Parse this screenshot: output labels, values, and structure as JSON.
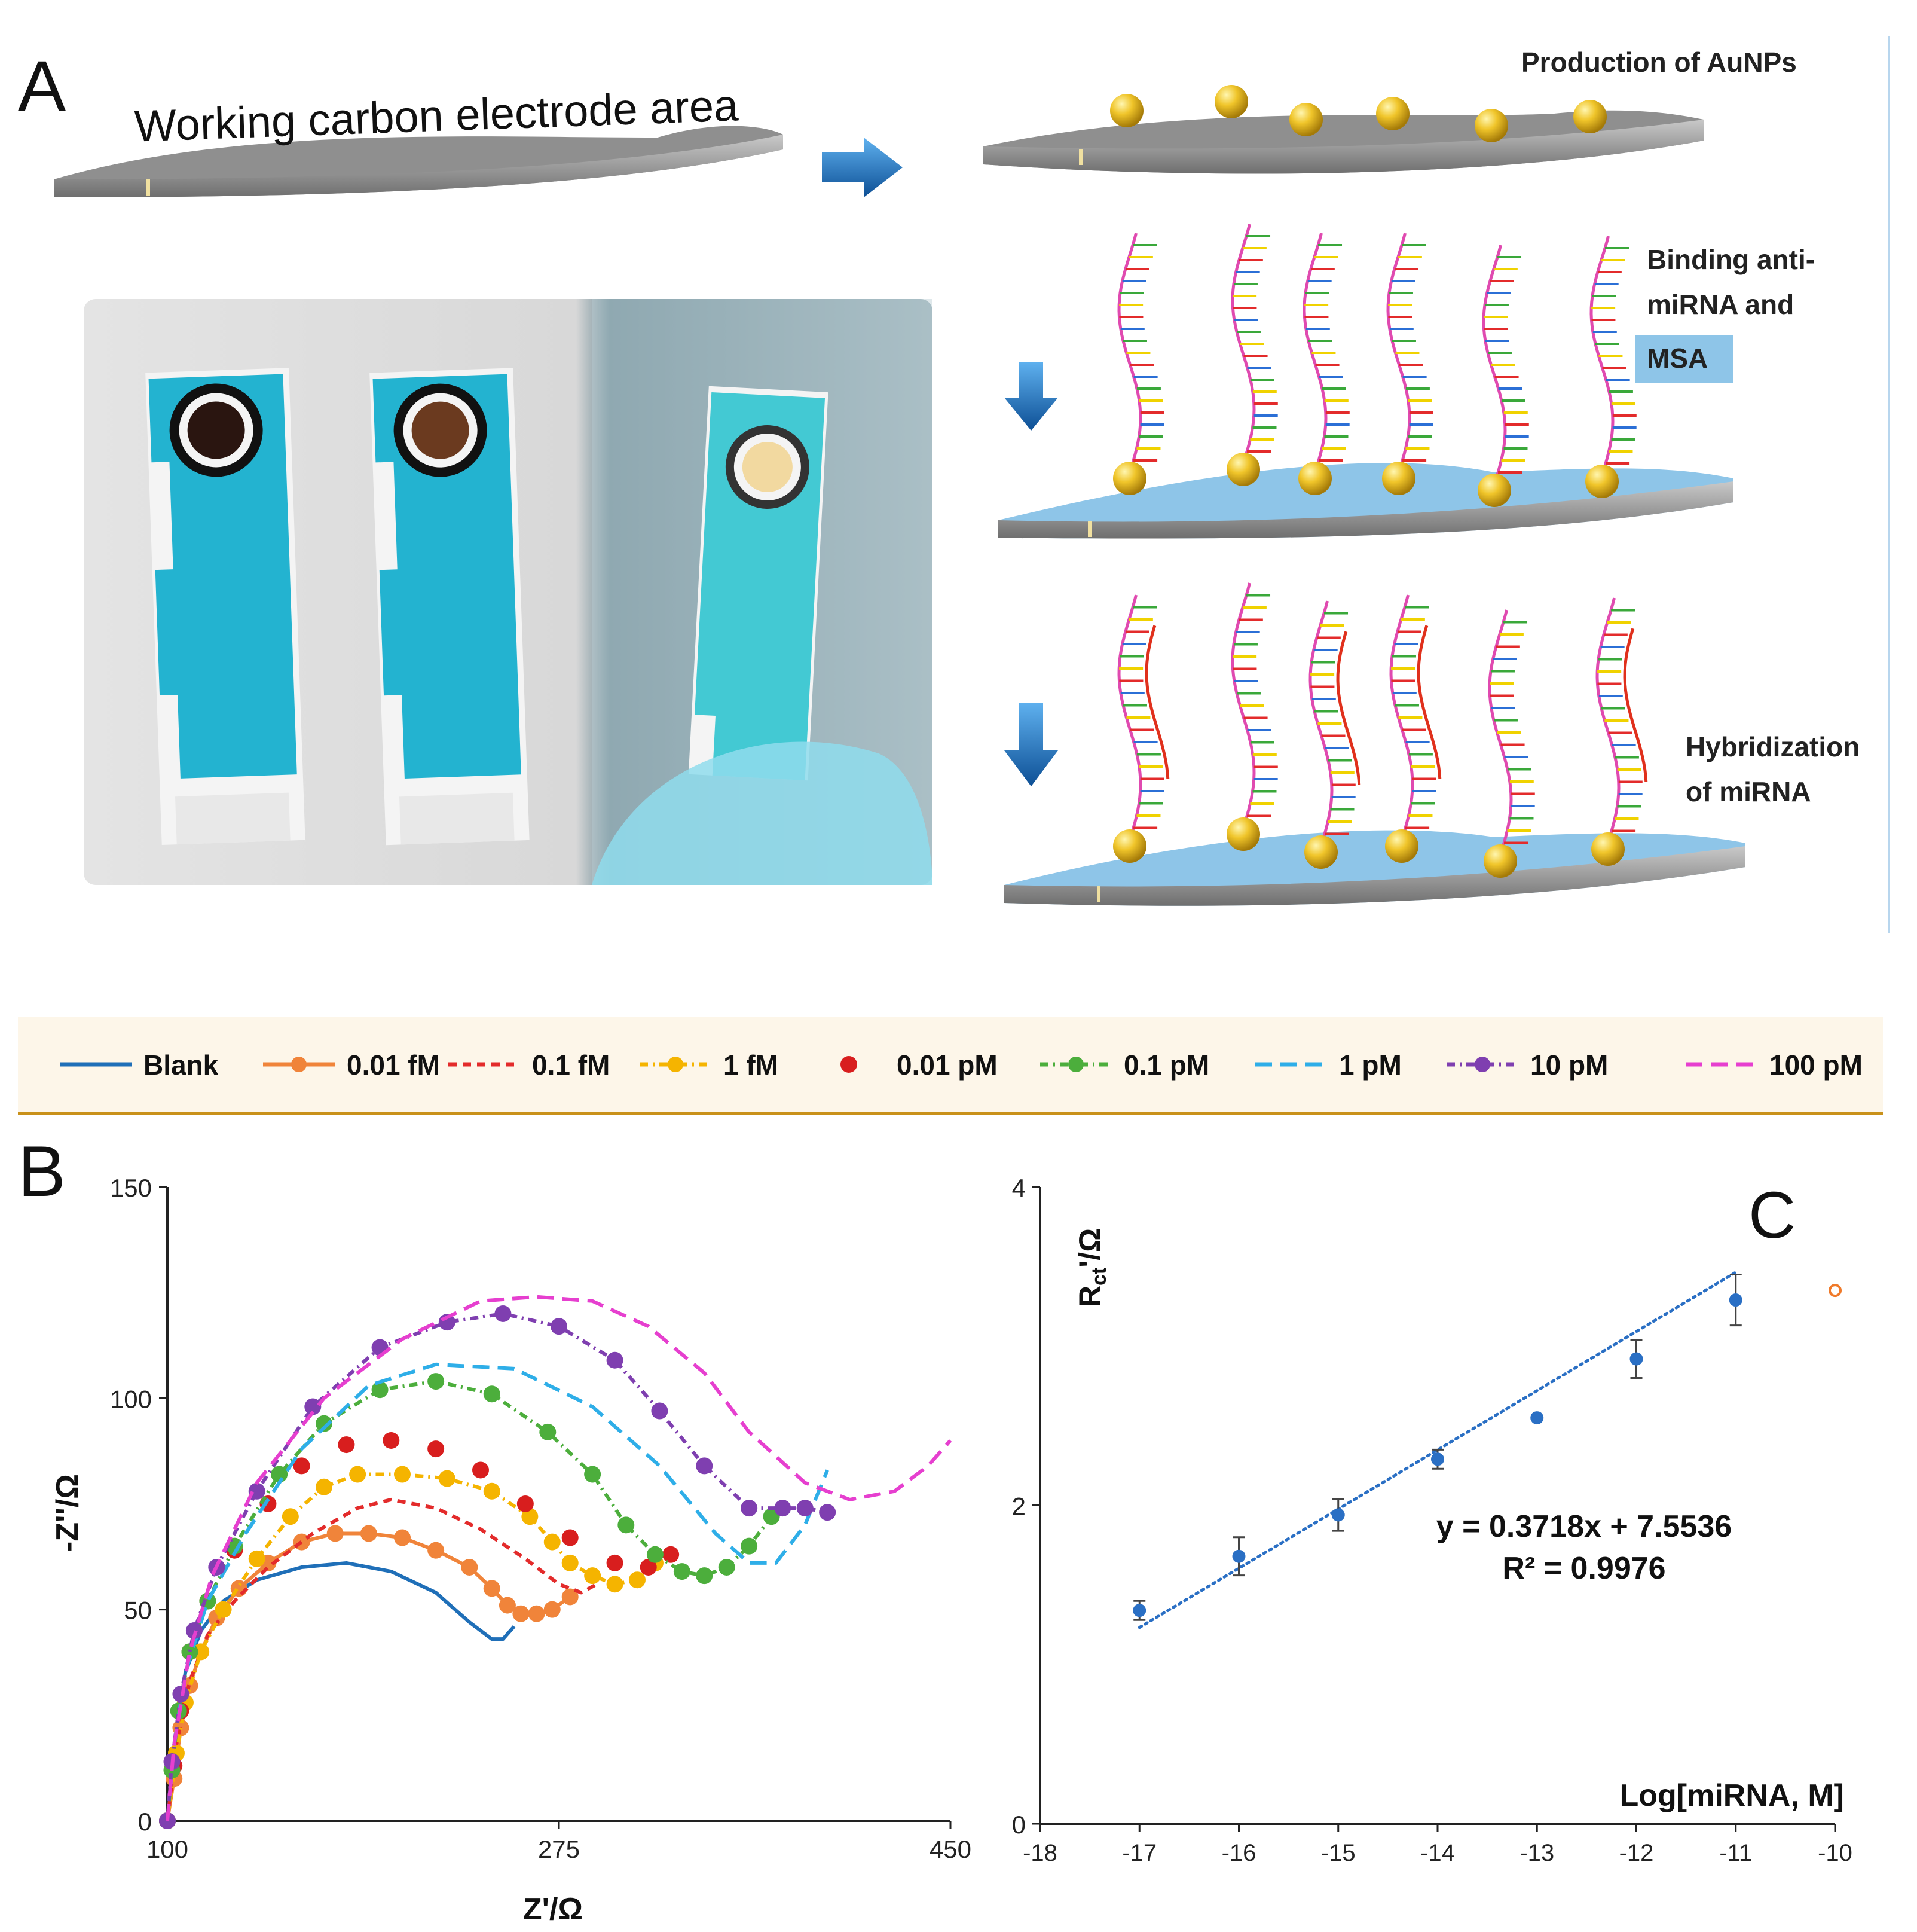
{
  "panel_a": {
    "letter": "A",
    "electrode_title": "Working carbon electrode area",
    "step1_label": "Production of AuNPs",
    "step2_label_line1": "Binding anti-",
    "step2_label_line2": "miRNA and",
    "step2_label_line3": "MSA",
    "step3_label_line1": "Hybridization",
    "step3_label_line2": "of miRNA",
    "colors": {
      "electrode_gray": "#9a9a9a",
      "electrode_blue": "#8ec5e8",
      "gold": "#e8b820",
      "arrow_blue": "#1f6fb8",
      "strip_cyan": "#23b3d0"
    }
  },
  "legend": {
    "items": [
      {
        "label": "Blank",
        "color": "#1f6fb8",
        "style": "solid"
      },
      {
        "label": "0.01 fM",
        "color": "#f0843a",
        "style": "solid-dot"
      },
      {
        "label": "0.1 fM",
        "color": "#e32b2b",
        "style": "dash"
      },
      {
        "label": "1 fM",
        "color": "#f5b400",
        "style": "dash-dot"
      },
      {
        "label": "0.01 pM",
        "color": "#d81e1e",
        "style": "dot"
      },
      {
        "label": "0.1 pM",
        "color": "#4cae3c",
        "style": "dash-dot"
      },
      {
        "label": "1 pM",
        "color": "#2eaee8",
        "style": "longdash"
      },
      {
        "label": "10 pM",
        "color": "#7f3fb0",
        "style": "dash-dot"
      },
      {
        "label": "100 pM",
        "color": "#e63fcf",
        "style": "longdash"
      }
    ]
  },
  "panel_b": {
    "letter": "B",
    "xlabel": "Z'/Ω",
    "ylabel": "-Z''/Ω",
    "xticks": [
      "100",
      "275",
      "450"
    ],
    "yticks": [
      "0",
      "50",
      "100",
      "150"
    ]
  },
  "panel_c": {
    "letter": "C",
    "ylabel_main": "R",
    "ylabel_sub": "ct",
    "ylabel_tail": "'/Ω",
    "xlabel": "Log[miRNA, M]",
    "equation": "y = 0.3718x + 7.5536",
    "r2": "R² = 0.9976",
    "xticks": [
      "-18",
      "-17",
      "-16",
      "-15",
      "-14",
      "-13",
      "-12",
      "-11",
      "-10"
    ],
    "yticks": [
      "0",
      "2",
      "4"
    ]
  },
  "chart_data": [
    {
      "type": "line",
      "panel": "B",
      "xlabel": "Z'/Ω",
      "ylabel": "-Z''/Ω",
      "xlim": [
        100,
        450
      ],
      "ylim": [
        0,
        150
      ],
      "series": [
        {
          "name": "Blank",
          "x": [
            100,
            104,
            108,
            115,
            125,
            140,
            160,
            180,
            200,
            220,
            235,
            245,
            250,
            255
          ],
          "y": [
            0,
            20,
            35,
            45,
            52,
            57,
            60,
            61,
            59,
            54,
            47,
            43,
            43,
            46
          ]
        },
        {
          "name": "0.01 fM",
          "x": [
            100,
            103,
            106,
            110,
            115,
            122,
            132,
            145,
            160,
            175,
            190,
            205,
            220,
            235,
            245,
            252,
            258,
            265,
            272,
            280
          ],
          "y": [
            0,
            10,
            22,
            32,
            40,
            48,
            55,
            61,
            66,
            68,
            68,
            67,
            64,
            60,
            55,
            51,
            49,
            49,
            50,
            53
          ]
        },
        {
          "name": "0.1 fM",
          "x": [
            100,
            104,
            110,
            118,
            130,
            145,
            165,
            185,
            200,
            220,
            240,
            260,
            275,
            285,
            292
          ],
          "y": [
            0,
            18,
            33,
            44,
            52,
            60,
            68,
            74,
            76,
            74,
            69,
            62,
            56,
            54,
            56
          ]
        },
        {
          "name": "1 fM",
          "x": [
            100,
            104,
            108,
            115,
            125,
            140,
            155,
            170,
            185,
            205,
            225,
            245,
            262,
            272,
            280,
            290,
            300,
            310,
            318
          ],
          "y": [
            0,
            16,
            28,
            40,
            50,
            62,
            72,
            79,
            82,
            82,
            81,
            78,
            72,
            66,
            61,
            58,
            56,
            57,
            61
          ]
        },
        {
          "name": "0.01 pM",
          "x": [
            100,
            103,
            106,
            110,
            118,
            130,
            145,
            160,
            180,
            200,
            220,
            240,
            260,
            280,
            300,
            315,
            325
          ],
          "y": [
            0,
            13,
            26,
            40,
            52,
            64,
            75,
            84,
            89,
            90,
            88,
            83,
            75,
            67,
            61,
            60,
            63
          ]
        },
        {
          "name": "0.1 pM",
          "x": [
            100,
            102,
            105,
            110,
            118,
            130,
            150,
            170,
            195,
            220,
            245,
            270,
            290,
            305,
            318,
            330,
            340,
            350,
            360,
            370
          ],
          "y": [
            0,
            12,
            26,
            40,
            52,
            65,
            82,
            94,
            102,
            104,
            101,
            92,
            82,
            70,
            63,
            59,
            58,
            60,
            65,
            72
          ]
        },
        {
          "name": "1 pM",
          "x": [
            100,
            103,
            108,
            118,
            135,
            160,
            190,
            220,
            255,
            290,
            320,
            345,
            360,
            372,
            385,
            395
          ],
          "y": [
            0,
            18,
            35,
            52,
            68,
            88,
            103,
            108,
            107,
            98,
            84,
            68,
            61,
            61,
            70,
            83
          ]
        },
        {
          "name": "10 pM",
          "x": [
            100,
            102,
            106,
            112,
            122,
            140,
            165,
            195,
            225,
            250,
            275,
            300,
            320,
            340,
            360,
            375,
            385,
            395
          ],
          "y": [
            0,
            14,
            30,
            45,
            60,
            78,
            98,
            112,
            118,
            120,
            117,
            109,
            97,
            84,
            74,
            74,
            74,
            73
          ]
        },
        {
          "name": "100 pM",
          "x": [
            100,
            103,
            110,
            120,
            140,
            170,
            205,
            240,
            265,
            290,
            315,
            340,
            360,
            385,
            405,
            425,
            440,
            450
          ],
          "y": [
            0,
            18,
            40,
            58,
            80,
            100,
            114,
            123,
            124,
            123,
            117,
            106,
            92,
            80,
            76,
            78,
            84,
            90
          ]
        }
      ]
    },
    {
      "type": "scatter",
      "panel": "C",
      "xlabel": "Log[miRNA, M]",
      "ylabel": "Rct'/Ω",
      "xlim": [
        -18,
        -10
      ],
      "ylim": [
        0,
        4
      ],
      "x": [
        -17,
        -16,
        -15,
        -14,
        -13,
        -12,
        -11
      ],
      "y": [
        1.34,
        1.68,
        1.94,
        2.29,
        2.55,
        2.92,
        3.29
      ],
      "error": [
        0.06,
        0.12,
        0.1,
        0.06,
        0.0,
        0.12,
        0.16
      ],
      "outlier": {
        "x": -10,
        "y": 3.35
      },
      "trendline": {
        "slope": 0.3718,
        "intercept": 7.5536,
        "equation": "y = 0.3718x + 7.5536",
        "r2": "R² = 0.9976"
      }
    }
  ]
}
